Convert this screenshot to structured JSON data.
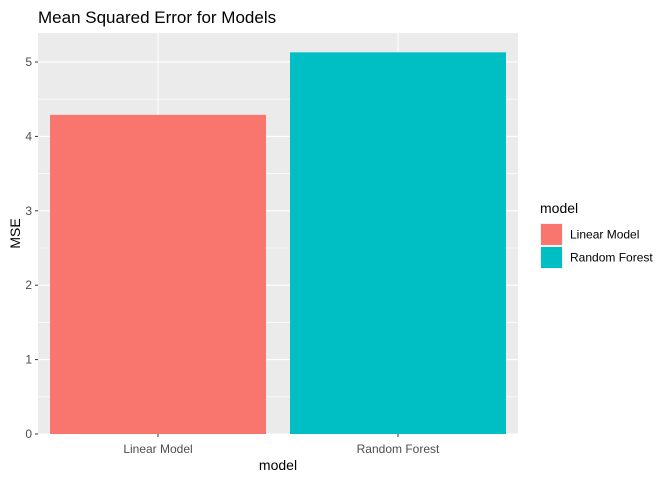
{
  "chart_data": {
    "type": "bar",
    "title": "Mean Squared Error for Models",
    "xlabel": "model",
    "ylabel": "MSE",
    "categories": [
      "Linear Model",
      "Random Forest"
    ],
    "values": [
      4.29,
      5.13
    ],
    "colors": [
      "#F8766D",
      "#00BFC4"
    ],
    "ylim": [
      0,
      5.39
    ],
    "yticks": [
      0,
      1,
      2,
      3,
      4,
      5
    ],
    "ytick_labels": [
      "0",
      "1",
      "2",
      "3",
      "4",
      "5"
    ],
    "grid": true,
    "legend": {
      "title": "model",
      "position": "right",
      "entries": [
        "Linear Model",
        "Random Forest"
      ]
    },
    "panel_background": "#EBEBEB",
    "grid_color": "#FFFFFF"
  }
}
